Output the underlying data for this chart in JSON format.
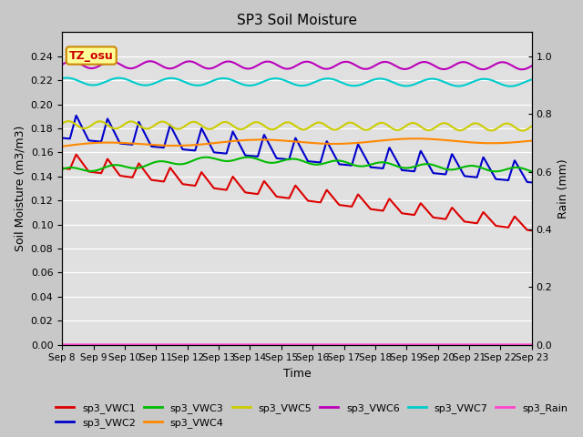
{
  "title": "SP3 Soil Moisture",
  "xlabel": "Time",
  "ylabel_left": "Soil Moisture (m3/m3)",
  "ylabel_right": "Rain (mm)",
  "ylim_left": [
    0,
    0.26
  ],
  "ylim_right": [
    0.0,
    1.0833
  ],
  "xtick_labels": [
    "Sep 8",
    "Sep 9",
    "Sep 10",
    "Sep 11",
    "Sep 12",
    "Sep 13",
    "Sep 14",
    "Sep 15",
    "Sep 16",
    "Sep 17",
    "Sep 18",
    "Sep 19",
    "Sep 20",
    "Sep 21",
    "Sep 22",
    "Sep 23"
  ],
  "yticks_left": [
    0.0,
    0.02,
    0.04,
    0.06,
    0.08,
    0.1,
    0.12,
    0.14,
    0.16,
    0.18,
    0.2,
    0.22,
    0.24
  ],
  "yticks_right": [
    0.0,
    0.2,
    0.4,
    0.6,
    0.8,
    1.0
  ],
  "fig_bg_color": "#c8c8c8",
  "plot_bg_color": "#e0e0e0",
  "annotation_text": "TZ_osu",
  "annotation_color": "#cc0000",
  "annotation_bg": "#ffff99",
  "annotation_border": "#cc8800",
  "series": {
    "sp3_VWC1": {
      "color": "#dd0000",
      "lw": 1.5
    },
    "sp3_VWC2": {
      "color": "#0000cc",
      "lw": 1.5
    },
    "sp3_VWC3": {
      "color": "#00bb00",
      "lw": 1.5
    },
    "sp3_VWC4": {
      "color": "#ff8800",
      "lw": 1.5
    },
    "sp3_VWC5": {
      "color": "#cccc00",
      "lw": 1.5
    },
    "sp3_VWC6": {
      "color": "#bb00bb",
      "lw": 1.5
    },
    "sp3_VWC7": {
      "color": "#00cccc",
      "lw": 1.5
    },
    "sp3_Rain": {
      "color": "#ff44cc",
      "lw": 1.5
    }
  }
}
